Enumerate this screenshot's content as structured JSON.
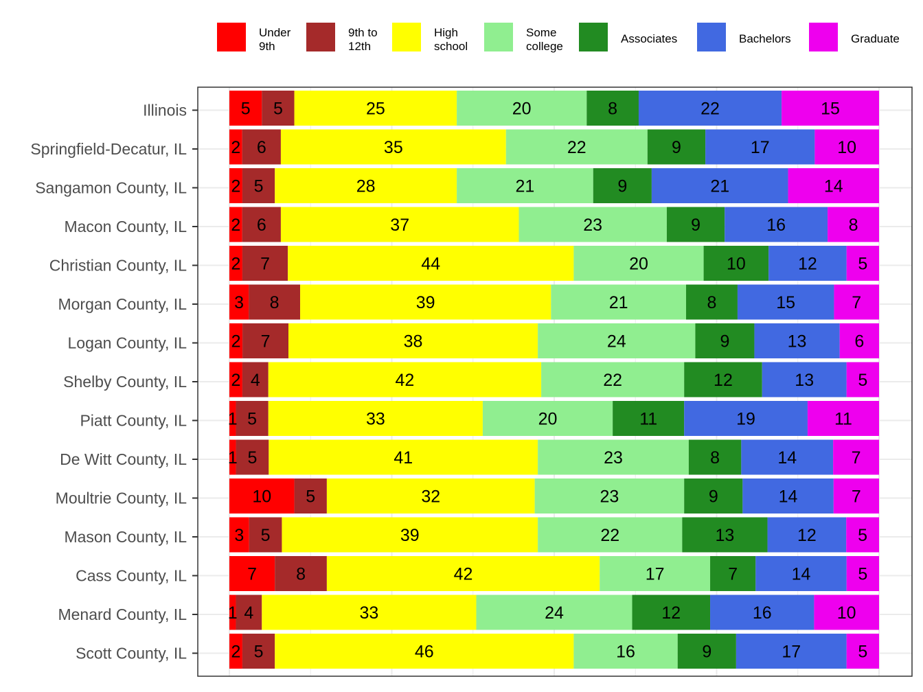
{
  "chart_data": {
    "type": "bar",
    "orientation": "horizontal",
    "stacked": "percent",
    "title": "",
    "xlabel": "",
    "ylabel": "",
    "legend_position": "top",
    "grid": true,
    "categories": [
      "Illinois",
      "Springfield-Decatur, IL",
      "Sangamon County, IL",
      "Macon County, IL",
      "Christian County, IL",
      "Morgan County, IL",
      "Logan County, IL",
      "Shelby County, IL",
      "Piatt County, IL",
      "De Witt County, IL",
      "Moultrie County, IL",
      "Mason County, IL",
      "Cass County, IL",
      "Menard County, IL",
      "Scott County, IL"
    ],
    "series": [
      {
        "name": "Under 9th",
        "legend_lines": [
          "Under",
          "9th"
        ],
        "color": "#ff0000",
        "values": [
          5,
          2,
          2,
          2,
          2,
          3,
          2,
          2,
          1,
          1,
          10,
          3,
          7,
          1,
          2
        ]
      },
      {
        "name": "9th to 12th",
        "legend_lines": [
          "9th to",
          "12th"
        ],
        "color": "#a52a2a",
        "values": [
          5,
          6,
          5,
          6,
          7,
          8,
          7,
          4,
          5,
          5,
          5,
          5,
          8,
          4,
          5
        ]
      },
      {
        "name": "High school",
        "legend_lines": [
          "High",
          "school"
        ],
        "color": "#ffff00",
        "values": [
          25,
          35,
          28,
          37,
          44,
          39,
          38,
          42,
          33,
          41,
          32,
          39,
          42,
          33,
          46
        ]
      },
      {
        "name": "Some college",
        "legend_lines": [
          "Some",
          "college"
        ],
        "color": "#90ee90",
        "values": [
          20,
          22,
          21,
          23,
          20,
          21,
          24,
          22,
          20,
          23,
          23,
          22,
          17,
          24,
          16
        ]
      },
      {
        "name": "Associates",
        "legend_lines": [
          "Associates"
        ],
        "color": "#228b22",
        "values": [
          8,
          9,
          9,
          9,
          10,
          8,
          9,
          12,
          11,
          8,
          9,
          13,
          7,
          12,
          9
        ]
      },
      {
        "name": "Bachelors",
        "legend_lines": [
          "Bachelors"
        ],
        "color": "#4169e1",
        "values": [
          22,
          17,
          21,
          16,
          12,
          15,
          13,
          13,
          19,
          14,
          14,
          12,
          14,
          16,
          17
        ]
      },
      {
        "name": "Graduate",
        "legend_lines": [
          "Graduate"
        ],
        "color": "#ee00ee",
        "values": [
          15,
          10,
          14,
          8,
          5,
          7,
          6,
          5,
          11,
          7,
          7,
          5,
          5,
          10,
          5
        ]
      }
    ]
  }
}
